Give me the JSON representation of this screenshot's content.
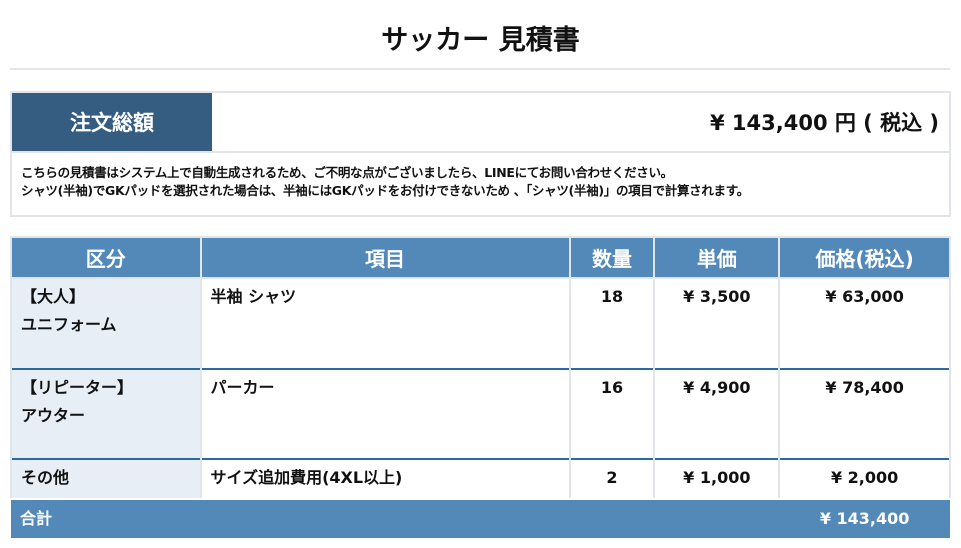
{
  "title": "サッカー 見積書",
  "summary": {
    "label": "注文総額",
    "amount": "¥ 143,400 円 ( 税込 )"
  },
  "notes": [
    "こちらの見積書はシステム上で自動生成されるため、ご不明な点がございましたら、LINEにてお問い合わせください。",
    "シャツ(半袖)でGKパッドを選択された場合は、半袖にはGKパッドをお付けできないため 、「シャツ(半袖)」の項目で計算されます。"
  ],
  "table": {
    "headers": [
      "区分",
      "項目",
      "数量",
      "単価",
      "価格(税込)"
    ],
    "rows": [
      {
        "cat1": "【大人】",
        "cat2": "ユニフォーム",
        "item": "半袖 シャツ",
        "qty": "18",
        "unit": "¥ 3,500",
        "price": "¥ 63,000"
      },
      {
        "cat1": "【リピーター】",
        "cat2": "アウター",
        "item": "パーカー",
        "qty": "16",
        "unit": "¥ 4,900",
        "price": "¥ 78,400"
      },
      {
        "cat1": "その他",
        "cat2": "",
        "item": "サイズ追加費用(4XL以上)",
        "qty": "2",
        "unit": "¥ 1,000",
        "price": "¥ 2,000"
      }
    ],
    "total_label": "合計",
    "total": "¥ 143,400"
  },
  "colors": {
    "summary_label": "#355d82",
    "header": "#5389b8",
    "row_border": "#2a6aa0",
    "category_bg": "#e8eef5"
  }
}
